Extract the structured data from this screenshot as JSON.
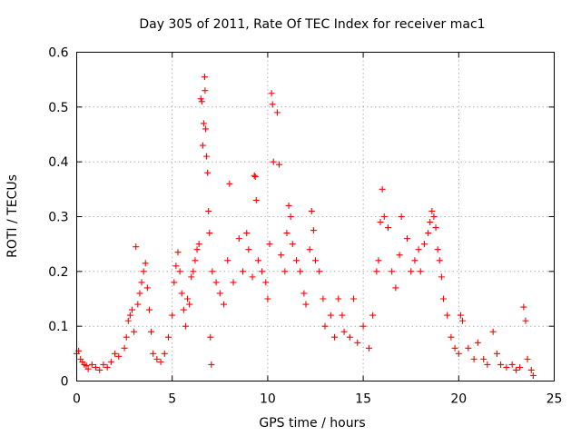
{
  "chart_data": {
    "type": "scatter",
    "title": "Day 305 of 2011, Rate Of TEC Index for receiver mac1",
    "xlabel": "GPS time / hours",
    "ylabel": "ROTI / TECUs",
    "xlim": [
      0,
      25
    ],
    "ylim": [
      0,
      0.6
    ],
    "x_ticks": [
      0,
      5,
      10,
      15,
      20,
      25
    ],
    "x_tick_labels": [
      "0",
      "5",
      "10",
      "15",
      "20",
      "25"
    ],
    "y_ticks": [
      0,
      0.1,
      0.2,
      0.3,
      0.4,
      0.5,
      0.6
    ],
    "y_tick_labels": [
      "0",
      "0.1",
      "0.2",
      "0.3",
      "0.4",
      "0.5",
      "0.6"
    ],
    "grid": true,
    "marker": "+",
    "series": [
      {
        "name": "ROTI",
        "color": "#ff0000",
        "points": [
          [
            0.0,
            0.05
          ],
          [
            0.1,
            0.055
          ],
          [
            0.2,
            0.04
          ],
          [
            0.3,
            0.035
          ],
          [
            0.4,
            0.03
          ],
          [
            0.5,
            0.028
          ],
          [
            0.6,
            0.022
          ],
          [
            0.8,
            0.03
          ],
          [
            1.0,
            0.025
          ],
          [
            1.2,
            0.02
          ],
          [
            1.4,
            0.03
          ],
          [
            1.6,
            0.025
          ],
          [
            1.8,
            0.035
          ],
          [
            2.0,
            0.05
          ],
          [
            2.2,
            0.045
          ],
          [
            2.5,
            0.06
          ],
          [
            2.6,
            0.08
          ],
          [
            2.7,
            0.11
          ],
          [
            2.8,
            0.12
          ],
          [
            2.9,
            0.13
          ],
          [
            3.0,
            0.09
          ],
          [
            3.1,
            0.245
          ],
          [
            3.2,
            0.14
          ],
          [
            3.3,
            0.16
          ],
          [
            3.4,
            0.18
          ],
          [
            3.5,
            0.2
          ],
          [
            3.6,
            0.215
          ],
          [
            3.7,
            0.17
          ],
          [
            3.8,
            0.13
          ],
          [
            3.9,
            0.09
          ],
          [
            4.0,
            0.05
          ],
          [
            4.2,
            0.04
          ],
          [
            4.4,
            0.035
          ],
          [
            4.6,
            0.05
          ],
          [
            4.8,
            0.08
          ],
          [
            5.0,
            0.12
          ],
          [
            5.1,
            0.18
          ],
          [
            5.2,
            0.21
          ],
          [
            5.3,
            0.235
          ],
          [
            5.4,
            0.2
          ],
          [
            5.5,
            0.16
          ],
          [
            5.6,
            0.13
          ],
          [
            5.7,
            0.1
          ],
          [
            5.8,
            0.15
          ],
          [
            5.9,
            0.14
          ],
          [
            6.0,
            0.19
          ],
          [
            6.1,
            0.2
          ],
          [
            6.2,
            0.22
          ],
          [
            6.3,
            0.24
          ],
          [
            6.4,
            0.25
          ],
          [
            6.5,
            0.515
          ],
          [
            6.55,
            0.51
          ],
          [
            6.6,
            0.43
          ],
          [
            6.65,
            0.47
          ],
          [
            6.7,
            0.555
          ],
          [
            6.72,
            0.53
          ],
          [
            6.75,
            0.46
          ],
          [
            6.8,
            0.41
          ],
          [
            6.85,
            0.38
          ],
          [
            6.9,
            0.31
          ],
          [
            6.95,
            0.27
          ],
          [
            7.0,
            0.08
          ],
          [
            7.05,
            0.03
          ],
          [
            7.1,
            0.2
          ],
          [
            7.3,
            0.18
          ],
          [
            7.5,
            0.16
          ],
          [
            7.7,
            0.14
          ],
          [
            7.9,
            0.22
          ],
          [
            8.0,
            0.36
          ],
          [
            8.2,
            0.18
          ],
          [
            8.5,
            0.26
          ],
          [
            8.7,
            0.2
          ],
          [
            8.9,
            0.27
          ],
          [
            9.0,
            0.24
          ],
          [
            9.2,
            0.19
          ],
          [
            9.3,
            0.375
          ],
          [
            9.35,
            0.373
          ],
          [
            9.4,
            0.33
          ],
          [
            9.5,
            0.22
          ],
          [
            9.7,
            0.2
          ],
          [
            9.9,
            0.18
          ],
          [
            10.0,
            0.15
          ],
          [
            10.1,
            0.25
          ],
          [
            10.2,
            0.525
          ],
          [
            10.25,
            0.505
          ],
          [
            10.3,
            0.4
          ],
          [
            10.5,
            0.49
          ],
          [
            10.6,
            0.395
          ],
          [
            10.7,
            0.23
          ],
          [
            10.9,
            0.2
          ],
          [
            11.0,
            0.27
          ],
          [
            11.1,
            0.32
          ],
          [
            11.2,
            0.3
          ],
          [
            11.3,
            0.25
          ],
          [
            11.5,
            0.22
          ],
          [
            11.7,
            0.2
          ],
          [
            11.9,
            0.16
          ],
          [
            12.0,
            0.14
          ],
          [
            12.2,
            0.24
          ],
          [
            12.3,
            0.31
          ],
          [
            12.4,
            0.275
          ],
          [
            12.5,
            0.22
          ],
          [
            12.7,
            0.2
          ],
          [
            12.9,
            0.15
          ],
          [
            13.0,
            0.1
          ],
          [
            13.3,
            0.12
          ],
          [
            13.5,
            0.08
          ],
          [
            13.7,
            0.15
          ],
          [
            13.9,
            0.12
          ],
          [
            14.0,
            0.09
          ],
          [
            14.3,
            0.08
          ],
          [
            14.5,
            0.15
          ],
          [
            14.7,
            0.07
          ],
          [
            15.0,
            0.1
          ],
          [
            15.3,
            0.06
          ],
          [
            15.5,
            0.12
          ],
          [
            15.7,
            0.2
          ],
          [
            15.8,
            0.22
          ],
          [
            15.9,
            0.29
          ],
          [
            16.0,
            0.35
          ],
          [
            16.1,
            0.3
          ],
          [
            16.3,
            0.28
          ],
          [
            16.5,
            0.2
          ],
          [
            16.7,
            0.17
          ],
          [
            16.9,
            0.23
          ],
          [
            17.0,
            0.3
          ],
          [
            17.3,
            0.26
          ],
          [
            17.5,
            0.2
          ],
          [
            17.7,
            0.22
          ],
          [
            17.9,
            0.24
          ],
          [
            18.0,
            0.2
          ],
          [
            18.2,
            0.25
          ],
          [
            18.4,
            0.27
          ],
          [
            18.5,
            0.29
          ],
          [
            18.6,
            0.31
          ],
          [
            18.7,
            0.3
          ],
          [
            18.8,
            0.28
          ],
          [
            18.9,
            0.24
          ],
          [
            19.0,
            0.22
          ],
          [
            19.1,
            0.19
          ],
          [
            19.2,
            0.15
          ],
          [
            19.4,
            0.12
          ],
          [
            19.6,
            0.08
          ],
          [
            19.8,
            0.06
          ],
          [
            20.0,
            0.05
          ],
          [
            20.1,
            0.12
          ],
          [
            20.2,
            0.11
          ],
          [
            20.5,
            0.06
          ],
          [
            20.8,
            0.04
          ],
          [
            21.0,
            0.07
          ],
          [
            21.3,
            0.04
          ],
          [
            21.5,
            0.03
          ],
          [
            21.8,
            0.09
          ],
          [
            22.0,
            0.05
          ],
          [
            22.2,
            0.03
          ],
          [
            22.5,
            0.025
          ],
          [
            22.8,
            0.03
          ],
          [
            23.0,
            0.02
          ],
          [
            23.2,
            0.025
          ],
          [
            23.4,
            0.135
          ],
          [
            23.5,
            0.11
          ],
          [
            23.6,
            0.04
          ],
          [
            23.8,
            0.02
          ],
          [
            23.9,
            0.01
          ]
        ]
      }
    ]
  }
}
